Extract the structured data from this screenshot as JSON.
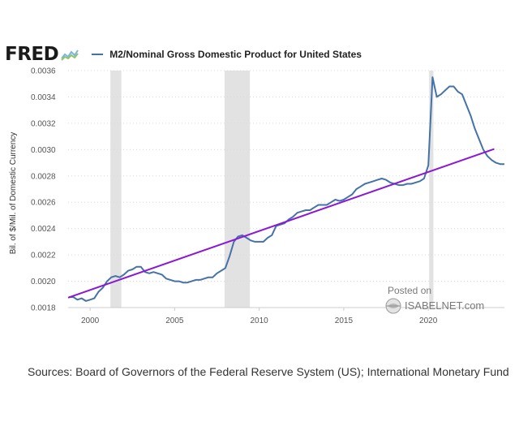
{
  "header": {
    "logo_text": "FRED",
    "logo_icon": "fred-chart-icon",
    "series_color": "#4572a7",
    "trend_color": "#8a18d6"
  },
  "watermark": {
    "posted_on": "Posted on",
    "site": "ISABELNET.com",
    "icon": "isabelnet-globe-icon"
  },
  "sources": "Sources: Board of Governors of the Federal Reserve System (US); International Monetary Fund",
  "chart_data": {
    "type": "line",
    "title": "M2/Nominal Gross Domestic Product for United States",
    "xlabel": "",
    "ylabel": "Bil. of $/Mil. of Domestic Currency",
    "xlim": [
      1998.7,
      2024.5
    ],
    "ylim": [
      0.0018,
      0.0036
    ],
    "grid": true,
    "legend": "top-left",
    "x_ticks": [
      {
        "value": 2000,
        "label": "2000"
      },
      {
        "value": 2005,
        "label": "2005"
      },
      {
        "value": 2010,
        "label": "2010"
      },
      {
        "value": 2015,
        "label": "2015"
      },
      {
        "value": 2020,
        "label": "2020"
      }
    ],
    "y_ticks": [
      {
        "value": 0.0018,
        "label": "0.0018"
      },
      {
        "value": 0.002,
        "label": "0.0020"
      },
      {
        "value": 0.0022,
        "label": "0.0022"
      },
      {
        "value": 0.0024,
        "label": "0.0024"
      },
      {
        "value": 0.0026,
        "label": "0.0026"
      },
      {
        "value": 0.0028,
        "label": "0.0028"
      },
      {
        "value": 0.003,
        "label": "0.0030"
      },
      {
        "value": 0.0032,
        "label": "0.0032"
      },
      {
        "value": 0.0034,
        "label": "0.0034"
      },
      {
        "value": 0.0036,
        "label": "0.0036"
      }
    ],
    "recessions": [
      {
        "start": 2001.2,
        "end": 2001.85
      },
      {
        "start": 2007.95,
        "end": 2009.45
      },
      {
        "start": 2020.05,
        "end": 2020.3
      }
    ],
    "series": [
      {
        "name": "M2/Nominal Gross Domestic Product for United States",
        "x": [
          1998.75,
          1999.0,
          1999.25,
          1999.5,
          1999.75,
          2000.0,
          2000.25,
          2000.5,
          2000.75,
          2001.0,
          2001.25,
          2001.5,
          2001.75,
          2002.0,
          2002.25,
          2002.5,
          2002.75,
          2003.0,
          2003.25,
          2003.5,
          2003.75,
          2004.0,
          2004.25,
          2004.5,
          2004.75,
          2005.0,
          2005.25,
          2005.5,
          2005.75,
          2006.0,
          2006.25,
          2006.5,
          2006.75,
          2007.0,
          2007.25,
          2007.5,
          2007.75,
          2008.0,
          2008.25,
          2008.5,
          2008.75,
          2009.0,
          2009.25,
          2009.5,
          2009.75,
          2010.0,
          2010.25,
          2010.5,
          2010.75,
          2011.0,
          2011.25,
          2011.5,
          2011.75,
          2012.0,
          2012.25,
          2012.5,
          2012.75,
          2013.0,
          2013.25,
          2013.5,
          2013.75,
          2014.0,
          2014.25,
          2014.5,
          2014.75,
          2015.0,
          2015.25,
          2015.5,
          2015.75,
          2016.0,
          2016.25,
          2016.5,
          2016.75,
          2017.0,
          2017.25,
          2017.5,
          2017.75,
          2018.0,
          2018.25,
          2018.5,
          2018.75,
          2019.0,
          2019.25,
          2019.5,
          2019.75,
          2020.0,
          2020.25,
          2020.5,
          2020.75,
          2021.0,
          2021.25,
          2021.5,
          2021.75,
          2022.0,
          2022.25,
          2022.5,
          2022.75,
          2023.0,
          2023.25,
          2023.5,
          2023.75,
          2024.0,
          2024.25,
          2024.5
        ],
        "values": [
          0.00188,
          0.00188,
          0.00186,
          0.00187,
          0.00185,
          0.00186,
          0.00187,
          0.00192,
          0.00195,
          0.002,
          0.00203,
          0.00204,
          0.00203,
          0.00205,
          0.00208,
          0.00209,
          0.00211,
          0.00211,
          0.00207,
          0.00206,
          0.00207,
          0.00206,
          0.00205,
          0.00202,
          0.00201,
          0.002,
          0.002,
          0.00199,
          0.00199,
          0.002,
          0.00201,
          0.00201,
          0.00202,
          0.00203,
          0.00203,
          0.00206,
          0.00208,
          0.0021,
          0.00219,
          0.0023,
          0.00234,
          0.00235,
          0.00233,
          0.00231,
          0.0023,
          0.0023,
          0.0023,
          0.00233,
          0.00235,
          0.00242,
          0.00243,
          0.00244,
          0.00247,
          0.00249,
          0.00252,
          0.00253,
          0.00254,
          0.00254,
          0.00256,
          0.00258,
          0.00258,
          0.00258,
          0.0026,
          0.00262,
          0.00261,
          0.00262,
          0.00264,
          0.00266,
          0.0027,
          0.00272,
          0.00274,
          0.00275,
          0.00276,
          0.00277,
          0.00278,
          0.00277,
          0.00275,
          0.00274,
          0.00273,
          0.00273,
          0.00274,
          0.00274,
          0.00275,
          0.00276,
          0.00278,
          0.00288,
          0.00355,
          0.0034,
          0.00342,
          0.00345,
          0.00348,
          0.00348,
          0.00344,
          0.00342,
          0.00334,
          0.00326,
          0.00316,
          0.00308,
          0.003,
          0.00295,
          0.00292,
          0.0029,
          0.00289,
          0.00289
        ]
      },
      {
        "name": "Linear trend",
        "x": [
          1998.7,
          2023.9
        ],
        "values": [
          0.001875,
          0.003005
        ]
      }
    ]
  }
}
